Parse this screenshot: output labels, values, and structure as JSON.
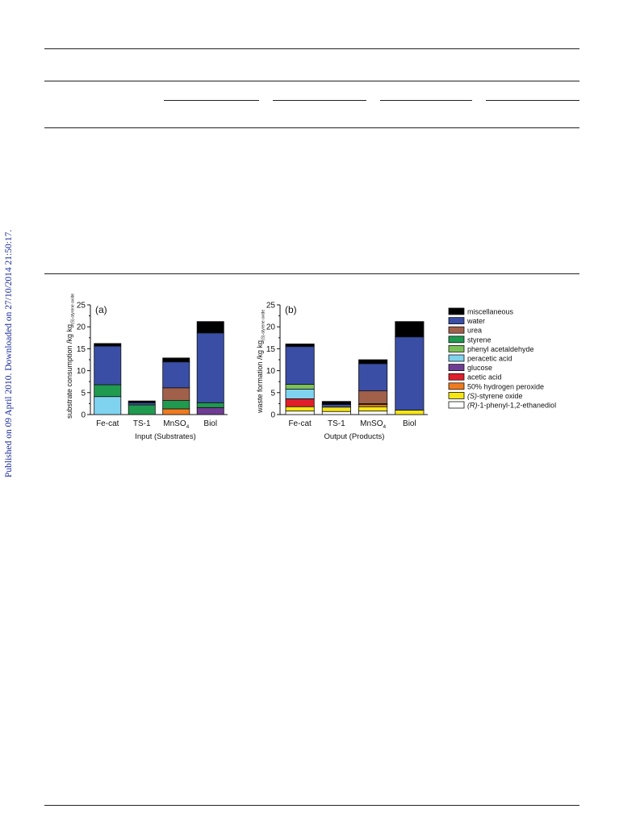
{
  "side_note": "Published on 09 April 2010. Downloaded on 27/10/2014 21:50:17.",
  "legend": [
    {
      "key": "misc",
      "label": "miscellaneous",
      "color": "#000000"
    },
    {
      "key": "water",
      "label": "water",
      "color": "#3a4ea5"
    },
    {
      "key": "urea",
      "label": "urea",
      "color": "#a0604a"
    },
    {
      "key": "styrene",
      "label": "styrene",
      "color": "#1f9a4f"
    },
    {
      "key": "phenylacet",
      "label": "phenyl acetaldehyde",
      "color": "#7cc05a"
    },
    {
      "key": "peracetic",
      "label": "peracetic acid",
      "color": "#7fd3ef"
    },
    {
      "key": "glucose",
      "label": "glucose",
      "color": "#6f3c94"
    },
    {
      "key": "acetic",
      "label": "acetic acid",
      "color": "#e01f2b"
    },
    {
      "key": "h2o2",
      "label": "50% hydrogen peroxide",
      "color": "#f07b1e"
    },
    {
      "key": "styreneoxide",
      "label_prefix": "(S)",
      "label": "-styrene oxide",
      "color": "#f6e514"
    },
    {
      "key": "diol",
      "label_prefix": "(R)",
      "label": "-1-phenyl-1,2-ethanediol",
      "color": "#ffffff"
    }
  ],
  "chart_data": [
    {
      "type": "bar",
      "stacked": true,
      "panel_label": "(a)",
      "title": "Input (Substrates)",
      "ylabel": "substrate consumption /kg kg",
      "ylabel_sub": "(S)-styrene oxide",
      "ylim": [
        0,
        25
      ],
      "yticks": [
        0,
        5,
        10,
        15,
        20,
        25
      ],
      "categories": [
        "Fe-cat",
        "TS-1",
        "MnSO",
        "Biol"
      ],
      "category_subscripts": [
        "",
        "",
        "4",
        ""
      ],
      "series": [
        {
          "key": "glucose",
          "values": [
            0,
            0,
            0,
            1.6
          ]
        },
        {
          "key": "h2o2",
          "values": [
            0,
            0,
            1.3,
            0
          ]
        },
        {
          "key": "peracetic",
          "values": [
            4.1,
            0,
            0,
            0
          ]
        },
        {
          "key": "styrene",
          "values": [
            2.7,
            2.2,
            1.9,
            1.1
          ]
        },
        {
          "key": "urea",
          "values": [
            0,
            0,
            2.9,
            0
          ]
        },
        {
          "key": "water",
          "values": [
            8.8,
            0.5,
            5.9,
            15.9
          ]
        },
        {
          "key": "misc",
          "values": [
            0.6,
            0.4,
            0.9,
            2.6
          ]
        }
      ]
    },
    {
      "type": "bar",
      "stacked": true,
      "panel_label": "(b)",
      "title": "Output (Products)",
      "ylabel": "waste formation /kg kg",
      "ylabel_sub": "(S)-styrene oxide",
      "ylim": [
        0,
        25
      ],
      "yticks": [
        0,
        5,
        10,
        15,
        20,
        25
      ],
      "categories": [
        "Fe-cat",
        "TS-1",
        "MnSO",
        "Biol"
      ],
      "category_subscripts": [
        "",
        "",
        "4",
        ""
      ],
      "series": [
        {
          "key": "diol",
          "values": [
            0.8,
            0.7,
            0.8,
            0
          ]
        },
        {
          "key": "styreneoxide",
          "values": [
            1.0,
            1.0,
            1.0,
            1.0
          ]
        },
        {
          "key": "h2o2",
          "values": [
            0,
            0,
            0.5,
            0
          ]
        },
        {
          "key": "acetic",
          "values": [
            1.8,
            0,
            0,
            0
          ]
        },
        {
          "key": "peracetic",
          "values": [
            2.2,
            0,
            0,
            0
          ]
        },
        {
          "key": "phenylacet",
          "values": [
            1.1,
            0,
            0,
            0
          ]
        },
        {
          "key": "styrene",
          "values": [
            0,
            0,
            0.2,
            0
          ]
        },
        {
          "key": "urea",
          "values": [
            0,
            0,
            2.9,
            0
          ]
        },
        {
          "key": "water",
          "values": [
            8.6,
            0.6,
            6.2,
            16.7
          ]
        },
        {
          "key": "misc",
          "values": [
            0.6,
            0.7,
            0.9,
            3.5
          ]
        }
      ]
    }
  ]
}
